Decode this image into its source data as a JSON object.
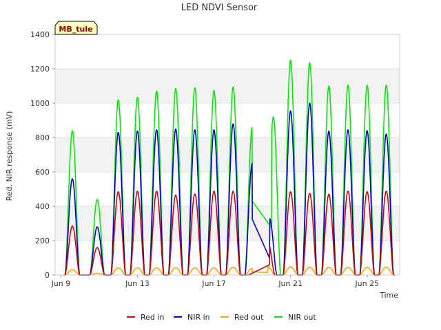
{
  "chart_data": {
    "type": "line",
    "title": "LED NDVI Sensor",
    "xlabel": "Time",
    "ylabel": "Red, NIR response (mV)",
    "site_label": "MB_tule",
    "x_unit": "days since Jun 9",
    "xlim": [
      -0.3,
      17.7
    ],
    "ylim": [
      0,
      1400
    ],
    "yticks": [
      0,
      200,
      400,
      600,
      800,
      1000,
      1200,
      1400
    ],
    "xticks": [
      {
        "label": "Jun 9",
        "day": 0
      },
      {
        "label": "Jun 13",
        "day": 4
      },
      {
        "label": "Jun 17",
        "day": 8
      },
      {
        "label": "Jun 21",
        "day": 12
      },
      {
        "label": "Jun 25",
        "day": 16
      }
    ],
    "grid": true,
    "legend": "bottom",
    "series": [
      {
        "name": "Red in",
        "color": "#dd0000",
        "daily_peaks": [
          [
            0.6,
            285
          ],
          [
            1.9,
            160
          ],
          [
            3.0,
            485
          ],
          [
            4.0,
            488
          ],
          [
            5.0,
            488
          ],
          [
            6.0,
            465
          ],
          [
            7.0,
            472
          ],
          [
            8.0,
            488
          ],
          [
            9.0,
            488
          ],
          [
            10.8,
            200
          ],
          [
            12.0,
            485
          ],
          [
            13.0,
            475
          ],
          [
            14.0,
            470
          ],
          [
            15.0,
            488
          ],
          [
            16.0,
            485
          ],
          [
            17.0,
            488
          ]
        ],
        "gaps": [
          [
            9.8,
            10.9
          ]
        ]
      },
      {
        "name": "NIR in",
        "color": "#0000dd",
        "daily_peaks": [
          [
            0.6,
            560
          ],
          [
            1.9,
            280
          ],
          [
            3.0,
            830
          ],
          [
            4.0,
            838
          ],
          [
            5.0,
            845
          ],
          [
            6.0,
            850
          ],
          [
            7.0,
            845
          ],
          [
            8.0,
            845
          ],
          [
            9.0,
            880
          ],
          [
            10.0,
            650
          ],
          [
            10.9,
            330
          ],
          [
            12.0,
            955
          ],
          [
            13.0,
            1000
          ],
          [
            14.0,
            838
          ],
          [
            15.0,
            845
          ],
          [
            16.0,
            840
          ],
          [
            17.0,
            820
          ]
        ],
        "gaps": [
          [
            10.0,
            10.9
          ]
        ]
      },
      {
        "name": "Red out",
        "color": "#ffa500",
        "daily_peaks": [
          [
            0.6,
            30
          ],
          [
            1.9,
            10
          ],
          [
            3.0,
            42
          ],
          [
            4.0,
            42
          ],
          [
            5.0,
            42
          ],
          [
            6.0,
            42
          ],
          [
            7.0,
            42
          ],
          [
            8.0,
            42
          ],
          [
            9.0,
            45
          ],
          [
            10.0,
            38
          ],
          [
            10.8,
            50
          ],
          [
            12.0,
            48
          ],
          [
            13.0,
            45
          ],
          [
            14.0,
            45
          ],
          [
            15.0,
            45
          ],
          [
            16.0,
            45
          ],
          [
            17.0,
            45
          ]
        ],
        "gaps": [
          [
            10.0,
            10.8
          ]
        ]
      },
      {
        "name": "NIR out",
        "color": "#00ee00",
        "daily_peaks": [
          [
            0.6,
            840
          ],
          [
            1.9,
            440
          ],
          [
            3.0,
            1020
          ],
          [
            4.0,
            1035
          ],
          [
            5.0,
            1070
          ],
          [
            6.0,
            1085
          ],
          [
            7.0,
            1090
          ],
          [
            8.0,
            1075
          ],
          [
            9.0,
            1095
          ],
          [
            10.0,
            860
          ],
          [
            11.1,
            920
          ],
          [
            12.0,
            1250
          ],
          [
            13.0,
            1235
          ],
          [
            14.0,
            1100
          ],
          [
            15.0,
            1105
          ],
          [
            16.0,
            1105
          ],
          [
            17.0,
            1105
          ]
        ],
        "gaps": [
          [
            10.0,
            11.0
          ]
        ]
      }
    ]
  }
}
